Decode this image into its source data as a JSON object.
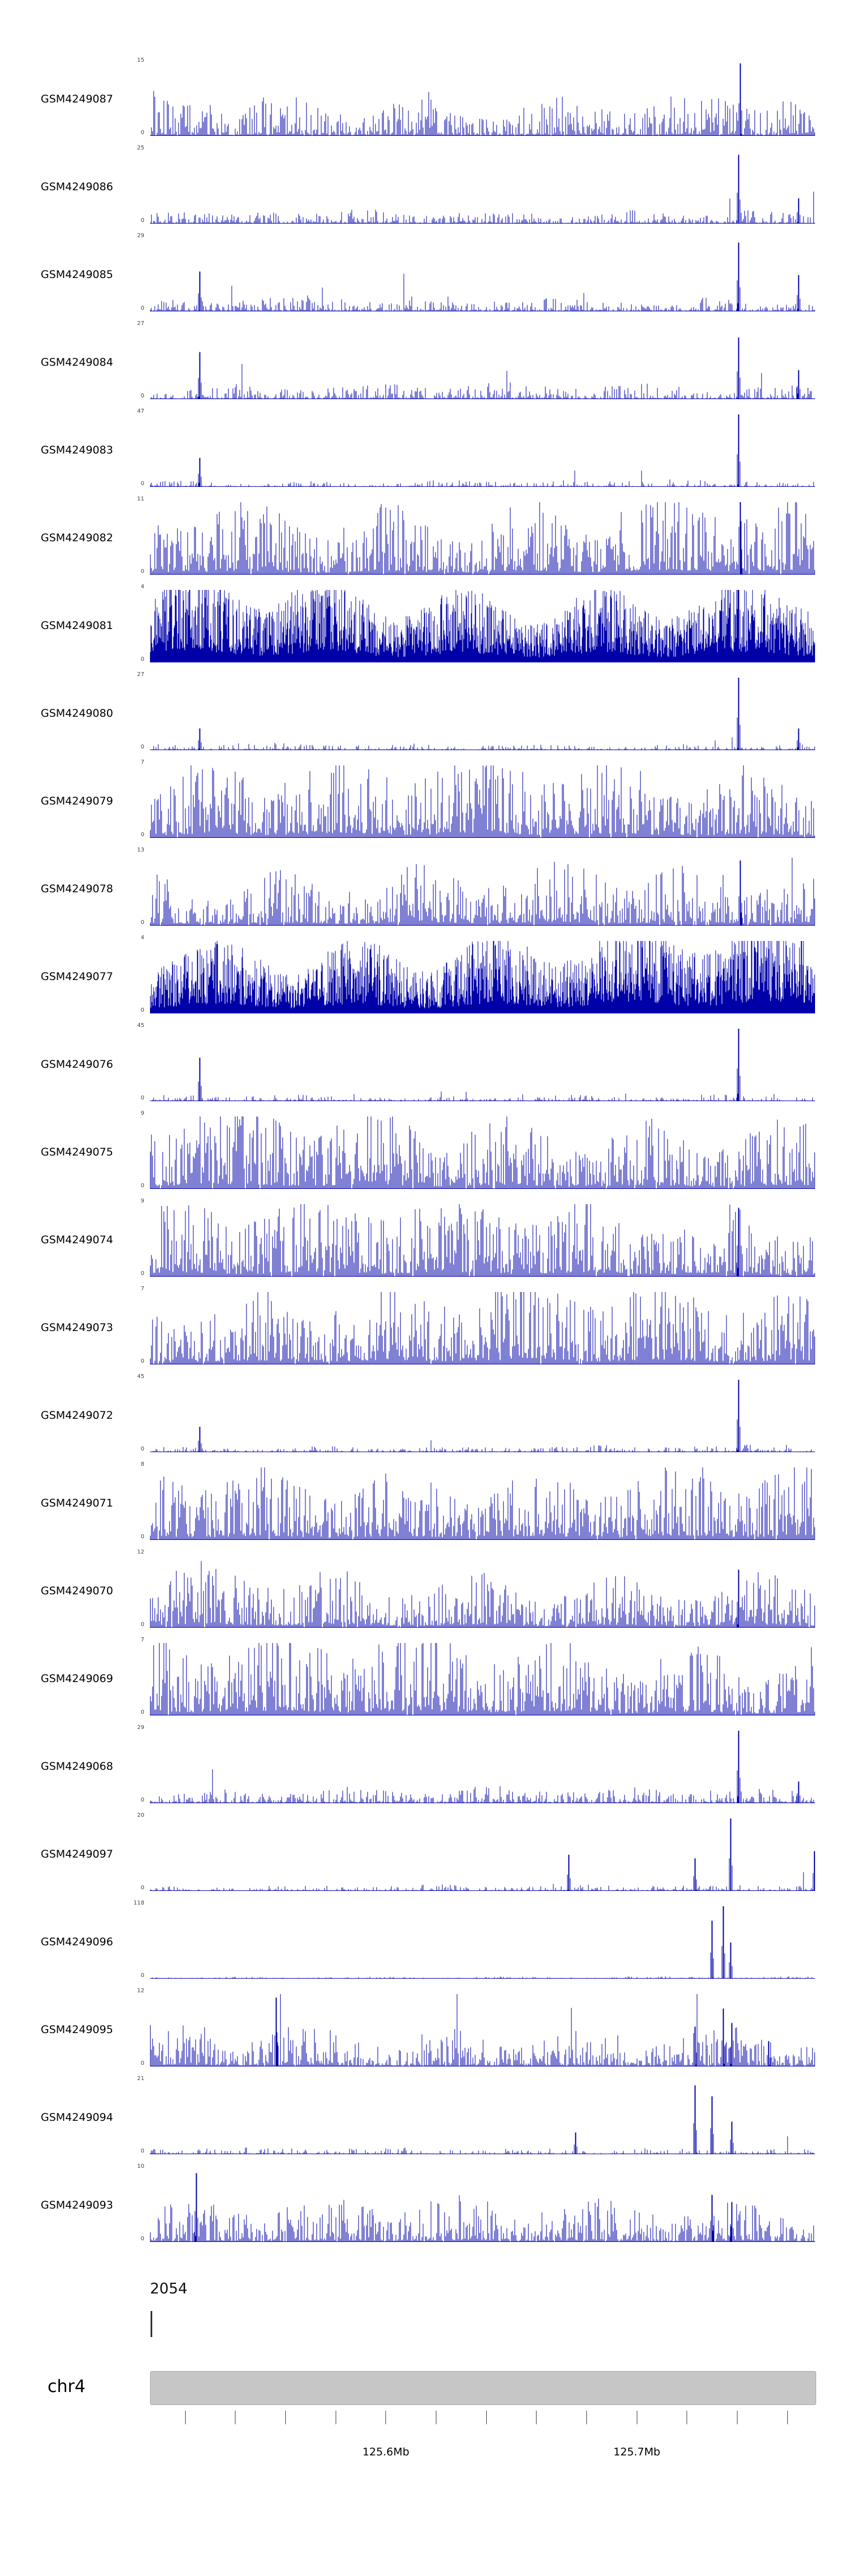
{
  "chart_data": {
    "type": "genome-coverage-tracks",
    "description": "Stacked genomic read-coverage signal tracks (dark blue bar density plots) for 25 GEO samples over a region of chromosome 4, with a gene annotation row and chromosome coordinate ruler below.",
    "bar_color": "#0000A8",
    "axis_color": "#444444",
    "ideogram_color": "#c6c6c6",
    "region": {
      "chromosome": "chr4",
      "x_range_mb": [
        125.506,
        125.771
      ],
      "x_ticks_mb": [
        125.52,
        125.54,
        125.56,
        125.58,
        125.6,
        125.62,
        125.64,
        125.66,
        125.68,
        125.7,
        125.72,
        125.74,
        125.76
      ],
      "x_tick_labels": [
        {
          "mb": 125.6,
          "label": "125.6Mb"
        },
        {
          "mb": 125.7,
          "label": "125.7Mb"
        }
      ]
    },
    "gene": {
      "label": "2054"
    },
    "profiles": {
      "quiet": {
        "density": 0.72,
        "min": 0.008,
        "max": 0.08,
        "pow": 3.0,
        "burst": 0.006,
        "step": 2
      },
      "low": {
        "density": 0.92,
        "min": 0.01,
        "max": 0.18,
        "pow": 2.8,
        "burst": 0.01,
        "step": 2
      },
      "medium": {
        "density": 0.96,
        "min": 0.02,
        "max": 0.5,
        "pow": 2.6,
        "burst": 0.008,
        "step": 2
      },
      "densemid": {
        "density": 0.97,
        "min": 0.04,
        "max": 0.7,
        "pow": 2.4,
        "burst": 0.004,
        "step": 2
      },
      "dense": {
        "density": 0.98,
        "min": 0.05,
        "max": 0.95,
        "pow": 2.0,
        "burst": 0.0,
        "step": 2
      },
      "saturated": {
        "density": 1.0,
        "min": 0.12,
        "max": 1.0,
        "pow": 1.4,
        "burst": 0.0,
        "step": 1
      },
      "flat": {
        "density": 0.6,
        "min": 0.004,
        "max": 0.025,
        "pow": 2.0,
        "burst": 0.002,
        "step": 2
      }
    },
    "tracks": [
      {
        "label": "GSM4249087",
        "ymax": "15",
        "ymin": "0",
        "profile": "medium",
        "spikes": [
          [
            0.888,
            1.0
          ]
        ]
      },
      {
        "label": "GSM4249086",
        "ymax": "25",
        "ymin": "0",
        "profile": "low",
        "spikes": [
          [
            0.885,
            0.95
          ],
          [
            0.975,
            0.35
          ]
        ]
      },
      {
        "label": "GSM4249085",
        "ymax": "29",
        "ymin": "0",
        "profile": "low",
        "spikes": [
          [
            0.075,
            0.55
          ],
          [
            0.885,
            0.95
          ],
          [
            0.975,
            0.5
          ]
        ]
      },
      {
        "label": "GSM4249084",
        "ymax": "27",
        "ymin": "0",
        "profile": "low",
        "spikes": [
          [
            0.075,
            0.65
          ],
          [
            0.885,
            0.85
          ],
          [
            0.975,
            0.4
          ]
        ]
      },
      {
        "label": "GSM4249083",
        "ymax": "47",
        "ymin": "0",
        "profile": "quiet",
        "spikes": [
          [
            0.075,
            0.4
          ],
          [
            0.885,
            1.0
          ]
        ]
      },
      {
        "label": "GSM4249082",
        "ymax": "11",
        "ymin": "0",
        "profile": "dense",
        "spikes": [
          [
            0.888,
            1.0
          ]
        ]
      },
      {
        "label": "GSM4249081",
        "ymax": "4",
        "ymin": "0",
        "profile": "saturated",
        "spikes": []
      },
      {
        "label": "GSM4249080",
        "ymax": "27",
        "ymin": "0",
        "profile": "quiet",
        "spikes": [
          [
            0.075,
            0.3
          ],
          [
            0.885,
            1.0
          ],
          [
            0.975,
            0.3
          ]
        ]
      },
      {
        "label": "GSM4249079",
        "ymax": "7",
        "ymin": "0",
        "profile": "dense",
        "spikes": []
      },
      {
        "label": "GSM4249078",
        "ymax": "13",
        "ymin": "0",
        "profile": "densemid",
        "spikes": [
          [
            0.888,
            0.9
          ]
        ]
      },
      {
        "label": "GSM4249077",
        "ymax": "4",
        "ymin": "0",
        "profile": "saturated",
        "spikes": []
      },
      {
        "label": "GSM4249076",
        "ymax": "45",
        "ymin": "0",
        "profile": "quiet",
        "spikes": [
          [
            0.075,
            0.6
          ],
          [
            0.885,
            1.0
          ]
        ]
      },
      {
        "label": "GSM4249075",
        "ymax": "9",
        "ymin": "0",
        "profile": "dense",
        "spikes": []
      },
      {
        "label": "GSM4249074",
        "ymax": "9",
        "ymin": "0",
        "profile": "dense",
        "spikes": [
          [
            0.885,
            0.95
          ]
        ]
      },
      {
        "label": "GSM4249073",
        "ymax": "7",
        "ymin": "0",
        "profile": "dense",
        "spikes": []
      },
      {
        "label": "GSM4249072",
        "ymax": "45",
        "ymin": "0",
        "profile": "quiet",
        "spikes": [
          [
            0.075,
            0.35
          ],
          [
            0.885,
            1.0
          ]
        ]
      },
      {
        "label": "GSM4249071",
        "ymax": "8",
        "ymin": "0",
        "profile": "dense",
        "spikes": []
      },
      {
        "label": "GSM4249070",
        "ymax": "12",
        "ymin": "0",
        "profile": "densemid",
        "spikes": [
          [
            0.885,
            0.8
          ]
        ]
      },
      {
        "label": "GSM4249069",
        "ymax": "7",
        "ymin": "0",
        "profile": "dense",
        "spikes": []
      },
      {
        "label": "GSM4249068",
        "ymax": "29",
        "ymin": "0",
        "profile": "low",
        "spikes": [
          [
            0.885,
            1.0
          ],
          [
            0.975,
            0.3
          ]
        ]
      },
      {
        "label": "GSM4249097",
        "ymax": "20",
        "ymin": "0",
        "profile": "quiet",
        "spikes": [
          [
            0.63,
            0.5
          ],
          [
            0.82,
            0.45
          ],
          [
            0.873,
            1.0
          ],
          [
            0.999,
            0.55
          ]
        ]
      },
      {
        "label": "GSM4249096",
        "ymax": "118",
        "ymin": "0",
        "profile": "flat",
        "spikes": [
          [
            0.845,
            0.8
          ],
          [
            0.862,
            1.0
          ],
          [
            0.873,
            0.5
          ]
        ]
      },
      {
        "label": "GSM4249095",
        "ymax": "12",
        "ymin": "0",
        "profile": "medium",
        "spikes": [
          [
            0.19,
            0.95
          ],
          [
            0.82,
            0.55
          ],
          [
            0.862,
            0.8
          ],
          [
            0.875,
            0.6
          ],
          [
            0.93,
            0.35
          ]
        ]
      },
      {
        "label": "GSM4249094",
        "ymax": "21",
        "ymin": "0",
        "profile": "quiet",
        "spikes": [
          [
            0.64,
            0.3
          ],
          [
            0.82,
            0.95
          ],
          [
            0.845,
            0.8
          ],
          [
            0.875,
            0.45
          ]
        ]
      },
      {
        "label": "GSM4249093",
        "ymax": "10",
        "ymin": "0",
        "profile": "medium",
        "spikes": [
          [
            0.07,
            0.95
          ],
          [
            0.845,
            0.65
          ],
          [
            0.875,
            0.55
          ]
        ]
      }
    ]
  }
}
